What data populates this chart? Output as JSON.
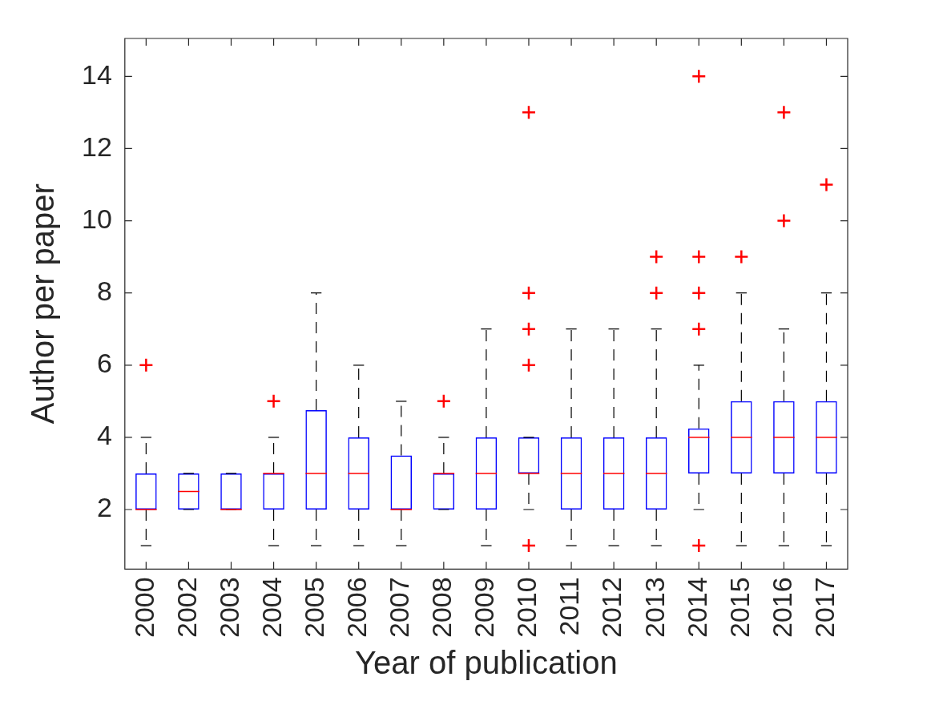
{
  "chart_data": {
    "type": "box",
    "xlabel": "Year of publication",
    "ylabel": "Author per paper",
    "color": "#0000ff",
    "categories": [
      "2000",
      "2002",
      "2003",
      "2004",
      "2005",
      "2006",
      "2007",
      "2008",
      "2009",
      "2010",
      "2011",
      "2012",
      "2013",
      "2014",
      "2015",
      "2016",
      "2017"
    ],
    "ylim": [
      0.35,
      15.05
    ],
    "yticks": [
      2,
      4,
      6,
      8,
      10,
      12,
      14
    ],
    "boxes": [
      {
        "low": 1,
        "q1": 2,
        "median": 2,
        "q3": 3,
        "high": 4,
        "outliers": [
          6
        ]
      },
      {
        "low": 2,
        "q1": 2,
        "median": 2.5,
        "q3": 3,
        "high": 3
      },
      {
        "low": 2,
        "q1": 2,
        "median": 2,
        "q3": 3,
        "high": 3
      },
      {
        "low": 1,
        "q1": 2,
        "median": 3,
        "q3": 3,
        "high": 4,
        "outliers": [
          5
        ]
      },
      {
        "low": 1,
        "q1": 2,
        "median": 3,
        "q3": 4.75,
        "high": 8
      },
      {
        "low": 1,
        "q1": 2,
        "median": 3,
        "q3": 4,
        "high": 6
      },
      {
        "low": 1,
        "q1": 2,
        "median": 2,
        "q3": 3.5,
        "high": 5
      },
      {
        "low": 2,
        "q1": 2,
        "median": 3,
        "q3": 3,
        "high": 4,
        "outliers": [
          5
        ]
      },
      {
        "low": 1,
        "q1": 2,
        "median": 3,
        "q3": 4,
        "high": 7
      },
      {
        "low": 2,
        "q1": 3,
        "median": 3,
        "q3": 4,
        "high": 4,
        "outliers": [
          1,
          6,
          7,
          8,
          13
        ]
      },
      {
        "low": 1,
        "q1": 2,
        "median": 3,
        "q3": 4,
        "high": 7
      },
      {
        "low": 1,
        "q1": 2,
        "median": 3,
        "q3": 4,
        "high": 7
      },
      {
        "low": 1,
        "q1": 2,
        "median": 3,
        "q3": 4,
        "high": 7,
        "outliers": [
          8,
          9
        ]
      },
      {
        "low": 2,
        "q1": 3,
        "median": 4,
        "q3": 4.25,
        "high": 6,
        "outliers": [
          1,
          7,
          8,
          9,
          14
        ]
      },
      {
        "low": 1,
        "q1": 3,
        "median": 4,
        "q3": 5,
        "high": 8,
        "outliers": [
          9
        ]
      },
      {
        "low": 1,
        "q1": 3,
        "median": 4,
        "q3": 5,
        "high": 7,
        "outliers": [
          10,
          13
        ]
      },
      {
        "low": 1,
        "q1": 3,
        "median": 4,
        "q3": 5,
        "high": 8,
        "outliers": [
          11
        ]
      }
    ]
  }
}
